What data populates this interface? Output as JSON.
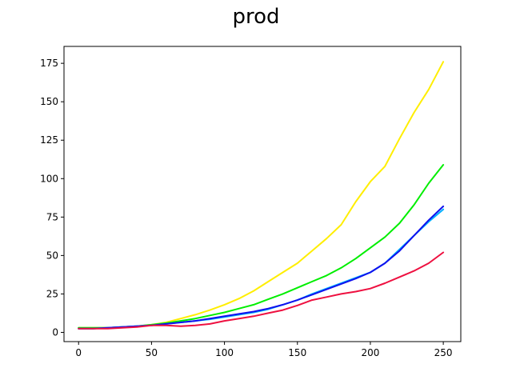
{
  "chart_data": {
    "type": "line",
    "title": "prod",
    "xlabel": "",
    "ylabel": "",
    "xlim": [
      -10,
      262
    ],
    "ylim": [
      -6,
      186
    ],
    "xticks": [
      0,
      50,
      100,
      150,
      200,
      250
    ],
    "yticks": [
      0,
      25,
      50,
      75,
      100,
      125,
      150,
      175
    ],
    "grid": false,
    "legend": "none",
    "x": [
      0,
      10,
      20,
      30,
      40,
      50,
      60,
      70,
      80,
      90,
      100,
      110,
      120,
      130,
      140,
      150,
      160,
      170,
      180,
      190,
      200,
      210,
      220,
      230,
      240,
      250
    ],
    "series": [
      {
        "color": "#ffee00",
        "values": [
          3,
          3,
          3,
          3.5,
          4,
          5,
          6.5,
          9,
          11.5,
          14.5,
          18,
          22,
          27,
          33,
          39,
          45,
          53,
          61,
          70,
          85,
          98,
          108,
          126,
          143,
          158,
          176
        ]
      },
      {
        "color": "#00ee00",
        "values": [
          3,
          3,
          3,
          3.5,
          4,
          5,
          6,
          7.5,
          9,
          11,
          13,
          15.5,
          18,
          21.5,
          25,
          29,
          33,
          37,
          42,
          48,
          55,
          62,
          71,
          83,
          97,
          109
        ]
      },
      {
        "color": "#00b0ff",
        "values": [
          2.5,
          2.5,
          3,
          3.5,
          4,
          4.5,
          5.5,
          6.5,
          7.5,
          8.5,
          10,
          11.5,
          13,
          15,
          18,
          21,
          25,
          28.5,
          32,
          35.5,
          39,
          45,
          54,
          63,
          72,
          80
        ]
      },
      {
        "color": "#1010ee",
        "values": [
          2.5,
          2.5,
          3,
          3.5,
          4,
          4.5,
          5.5,
          6.5,
          7.5,
          9,
          10.5,
          12,
          13.5,
          15.5,
          18,
          21,
          24.5,
          28,
          31.5,
          35,
          39,
          45,
          53,
          63,
          73,
          82
        ]
      },
      {
        "color": "#ee1040",
        "values": [
          2.5,
          2.5,
          2.5,
          3,
          3.5,
          4.5,
          4.5,
          4,
          4.5,
          5.5,
          7.5,
          9,
          10.5,
          12.5,
          14.5,
          17.5,
          21,
          23,
          25,
          26.5,
          28.5,
          32,
          36,
          40,
          45,
          52
        ]
      }
    ]
  }
}
